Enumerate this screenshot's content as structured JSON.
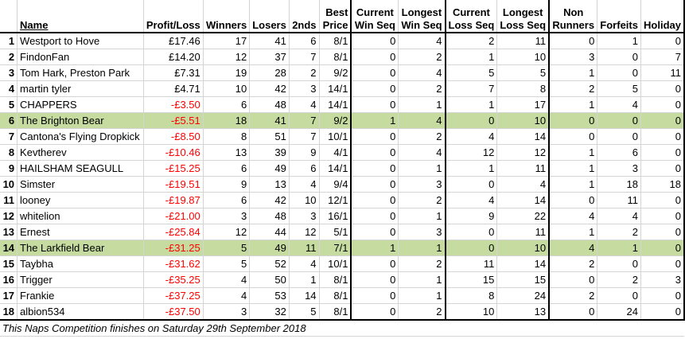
{
  "headers": {
    "name": "Name",
    "profit_loss": "Profit/Loss",
    "winners": "Winners",
    "losers": "Losers",
    "seconds": "2nds",
    "best_price": [
      "Best",
      "Price"
    ],
    "current_win_seq": [
      "Current",
      "Win Seq"
    ],
    "longest_win_seq": [
      "Longest",
      "Win Seq"
    ],
    "current_loss_seq": [
      "Current",
      "Loss Seq"
    ],
    "longest_loss_seq": [
      "Longest",
      "Loss Seq"
    ],
    "non_runners": [
      "Non",
      "Runners"
    ],
    "forfeits": "Forfeits",
    "holiday": "Holiday"
  },
  "rows": [
    {
      "rank": "1",
      "name": "Westport to Hove",
      "pl": "£17.46",
      "neg": false,
      "winners": "17",
      "losers": "41",
      "seconds": "6",
      "best": "8/1",
      "cws": "0",
      "lws": "4",
      "cls": "2",
      "lls": "11",
      "nr": "0",
      "forfeits": "1",
      "holiday": "0",
      "highlight": false
    },
    {
      "rank": "2",
      "name": "FindonFan",
      "pl": "£14.20",
      "neg": false,
      "winners": "12",
      "losers": "37",
      "seconds": "7",
      "best": "8/1",
      "cws": "0",
      "lws": "2",
      "cls": "1",
      "lls": "10",
      "nr": "3",
      "forfeits": "0",
      "holiday": "7",
      "highlight": false
    },
    {
      "rank": "3",
      "name": "Tom Hark, Preston Park",
      "pl": "£7.31",
      "neg": false,
      "winners": "19",
      "losers": "28",
      "seconds": "2",
      "best": "9/2",
      "cws": "0",
      "lws": "4",
      "cls": "5",
      "lls": "5",
      "nr": "1",
      "forfeits": "0",
      "holiday": "11",
      "highlight": false
    },
    {
      "rank": "4",
      "name": "martin tyler",
      "pl": "£4.71",
      "neg": false,
      "winners": "10",
      "losers": "42",
      "seconds": "3",
      "best": "14/1",
      "cws": "0",
      "lws": "2",
      "cls": "7",
      "lls": "8",
      "nr": "2",
      "forfeits": "5",
      "holiday": "0",
      "highlight": false
    },
    {
      "rank": "5",
      "name": "CHAPPERS",
      "pl": "-£3.50",
      "neg": true,
      "winners": "6",
      "losers": "48",
      "seconds": "4",
      "best": "14/1",
      "cws": "0",
      "lws": "1",
      "cls": "1",
      "lls": "17",
      "nr": "1",
      "forfeits": "4",
      "holiday": "0",
      "highlight": false
    },
    {
      "rank": "6",
      "name": "The Brighton Bear",
      "pl": "-£5.51",
      "neg": true,
      "winners": "18",
      "losers": "41",
      "seconds": "7",
      "best": "9/2",
      "cws": "1",
      "lws": "4",
      "cls": "0",
      "lls": "10",
      "nr": "0",
      "forfeits": "0",
      "holiday": "0",
      "highlight": true
    },
    {
      "rank": "7",
      "name": "Cantona's Flying Dropkick",
      "pl": "-£8.50",
      "neg": true,
      "winners": "8",
      "losers": "51",
      "seconds": "7",
      "best": "10/1",
      "cws": "0",
      "lws": "2",
      "cls": "4",
      "lls": "14",
      "nr": "0",
      "forfeits": "0",
      "holiday": "0",
      "highlight": false
    },
    {
      "rank": "8",
      "name": "Kevtherev",
      "pl": "-£10.46",
      "neg": true,
      "winners": "13",
      "losers": "39",
      "seconds": "9",
      "best": "4/1",
      "cws": "0",
      "lws": "4",
      "cls": "12",
      "lls": "12",
      "nr": "1",
      "forfeits": "6",
      "holiday": "0",
      "highlight": false
    },
    {
      "rank": "9",
      "name": "HAILSHAM SEAGULL",
      "pl": "-£15.25",
      "neg": true,
      "winners": "6",
      "losers": "49",
      "seconds": "6",
      "best": "14/1",
      "cws": "0",
      "lws": "1",
      "cls": "1",
      "lls": "11",
      "nr": "1",
      "forfeits": "3",
      "holiday": "0",
      "highlight": false
    },
    {
      "rank": "10",
      "name": "Simster",
      "pl": "-£19.51",
      "neg": true,
      "winners": "9",
      "losers": "13",
      "seconds": "4",
      "best": "9/4",
      "cws": "0",
      "lws": "3",
      "cls": "0",
      "lls": "4",
      "nr": "1",
      "forfeits": "18",
      "holiday": "18",
      "highlight": false
    },
    {
      "rank": "11",
      "name": "looney",
      "pl": "-£19.87",
      "neg": true,
      "winners": "6",
      "losers": "42",
      "seconds": "10",
      "best": "12/1",
      "cws": "0",
      "lws": "2",
      "cls": "4",
      "lls": "14",
      "nr": "0",
      "forfeits": "11",
      "holiday": "0",
      "highlight": false
    },
    {
      "rank": "12",
      "name": "whitelion",
      "pl": "-£21.00",
      "neg": true,
      "winners": "3",
      "losers": "48",
      "seconds": "3",
      "best": "16/1",
      "cws": "0",
      "lws": "1",
      "cls": "9",
      "lls": "22",
      "nr": "4",
      "forfeits": "4",
      "holiday": "0",
      "highlight": false
    },
    {
      "rank": "13",
      "name": "Ernest",
      "pl": "-£25.84",
      "neg": true,
      "winners": "12",
      "losers": "44",
      "seconds": "12",
      "best": "5/1",
      "cws": "0",
      "lws": "3",
      "cls": "0",
      "lls": "11",
      "nr": "1",
      "forfeits": "2",
      "holiday": "0",
      "highlight": false
    },
    {
      "rank": "14",
      "name": "The Larkfield Bear",
      "pl": "-£31.25",
      "neg": true,
      "winners": "5",
      "losers": "49",
      "seconds": "11",
      "best": "7/1",
      "cws": "1",
      "lws": "1",
      "cls": "0",
      "lls": "10",
      "nr": "4",
      "forfeits": "1",
      "holiday": "0",
      "highlight": true
    },
    {
      "rank": "15",
      "name": "Taybha",
      "pl": "-£31.62",
      "neg": true,
      "winners": "5",
      "losers": "52",
      "seconds": "4",
      "best": "10/1",
      "cws": "0",
      "lws": "2",
      "cls": "11",
      "lls": "14",
      "nr": "2",
      "forfeits": "0",
      "holiday": "0",
      "highlight": false
    },
    {
      "rank": "16",
      "name": "Trigger",
      "pl": "-£35.25",
      "neg": true,
      "winners": "4",
      "losers": "50",
      "seconds": "1",
      "best": "8/1",
      "cws": "0",
      "lws": "1",
      "cls": "15",
      "lls": "15",
      "nr": "0",
      "forfeits": "2",
      "holiday": "3",
      "highlight": false
    },
    {
      "rank": "17",
      "name": "Frankie",
      "pl": "-£37.25",
      "neg": true,
      "winners": "4",
      "losers": "53",
      "seconds": "14",
      "best": "8/1",
      "cws": "0",
      "lws": "1",
      "cls": "8",
      "lls": "24",
      "nr": "2",
      "forfeits": "0",
      "holiday": "0",
      "highlight": false
    },
    {
      "rank": "18",
      "name": "albion534",
      "pl": "-£37.50",
      "neg": true,
      "winners": "3",
      "losers": "32",
      "seconds": "5",
      "best": "8/1",
      "cws": "0",
      "lws": "2",
      "cls": "10",
      "lls": "13",
      "nr": "0",
      "forfeits": "24",
      "holiday": "0",
      "highlight": false
    }
  ],
  "footer": "This Naps Competition finishes on Saturday 29th September 2018",
  "colors": {
    "highlight": "#c6dba0",
    "negative": "#ff0000",
    "grid": "#d4d4d4"
  }
}
